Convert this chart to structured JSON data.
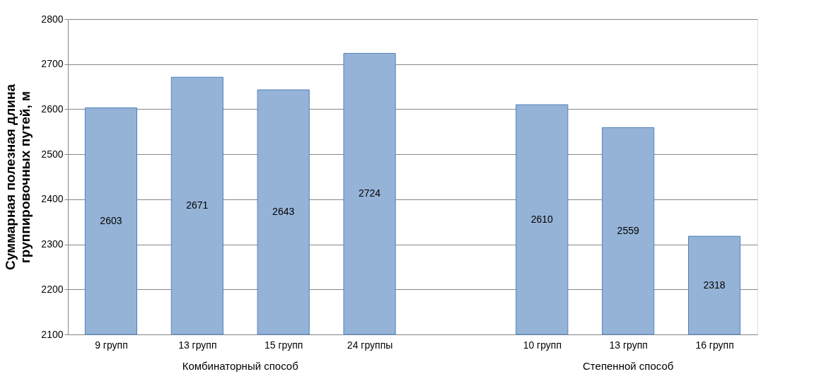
{
  "chart_data": {
    "type": "bar",
    "categories": [
      "9 групп",
      "13 групп",
      "15 групп",
      "24 группы",
      null,
      "10 групп",
      "13 групп",
      "16 групп"
    ],
    "values": [
      2603,
      2671,
      2643,
      2724,
      null,
      2610,
      2559,
      2318
    ],
    "color": "#95b3d7",
    "ylabel": "Суммарная полезная длина группировочных путей, м",
    "ylim": [
      2100,
      2800
    ],
    "yticks": [
      2100,
      2200,
      2300,
      2400,
      2500,
      2600,
      2700,
      2800
    ],
    "grid": "y",
    "data_labels": true,
    "annotations": [
      "Комбинаторный способ",
      "Степенной способ"
    ]
  }
}
